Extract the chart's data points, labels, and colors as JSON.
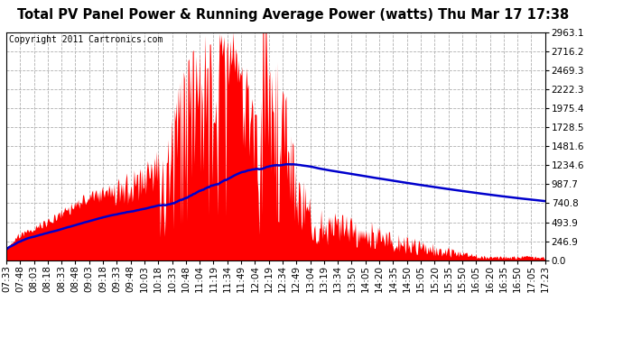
{
  "title": "Total PV Panel Power & Running Average Power (watts) Thu Mar 17 17:38",
  "copyright": "Copyright 2011 Cartronics.com",
  "y_max": 2963.1,
  "y_ticks": [
    0.0,
    246.9,
    493.9,
    740.8,
    987.7,
    1234.6,
    1481.6,
    1728.5,
    1975.4,
    2222.3,
    2469.3,
    2716.2,
    2963.1
  ],
  "x_labels": [
    "07:33",
    "07:48",
    "08:03",
    "08:18",
    "08:33",
    "08:48",
    "09:03",
    "09:18",
    "09:33",
    "09:48",
    "10:03",
    "10:18",
    "10:33",
    "10:48",
    "11:04",
    "11:19",
    "11:34",
    "11:49",
    "12:04",
    "12:19",
    "12:34",
    "12:49",
    "13:04",
    "13:19",
    "13:34",
    "13:50",
    "14:05",
    "14:20",
    "14:35",
    "14:50",
    "15:05",
    "15:20",
    "15:35",
    "15:50",
    "16:05",
    "16:20",
    "16:35",
    "16:50",
    "17:05",
    "17:23"
  ],
  "bg_color": "#ffffff",
  "plot_bg_color": "#ffffff",
  "bar_color": "#ff0000",
  "line_color": "#0000cc",
  "grid_color": "#b0b0b0",
  "title_color": "#000000",
  "border_color": "#000000",
  "title_fontsize": 10.5,
  "copyright_fontsize": 7,
  "tick_fontsize": 7.5,
  "line_width": 1.8
}
